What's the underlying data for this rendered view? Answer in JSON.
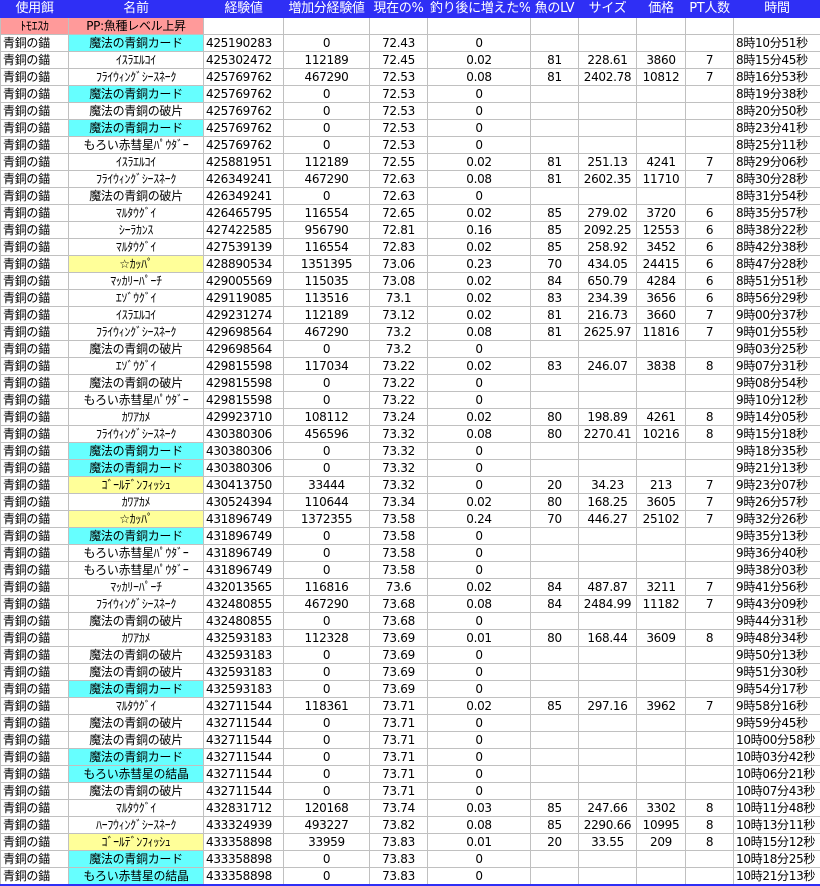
{
  "colors": {
    "header_bg": "#2f2ff5",
    "pp_bg": "#ff9a9a",
    "cyan": "#66ffff",
    "yellow": "#ffff99"
  },
  "headers": [
    "使用餌",
    "名前",
    "経験値",
    "増加分経験値",
    "現在の%",
    "釣り後に増えた%",
    "魚のLV",
    "サイズ",
    "価格",
    "PT人数",
    "時間"
  ],
  "pp_row": {
    "member": "ﾄﾓｴｽｶ",
    "buff": "PP:魚種レベル上昇"
  },
  "rows": [
    [
      "青銅の錨",
      "魔法の青銅カード",
      "425190283",
      "0",
      "72.43",
      "0",
      "",
      "",
      "",
      "",
      "8時10分51秒",
      "c"
    ],
    [
      "青銅の錨",
      "ｲｽﾗｴﾙｺｲ",
      "425302472",
      "112189",
      "72.45",
      "0.02",
      "81",
      "228.61",
      "3860",
      "7",
      "8時15分45秒",
      ""
    ],
    [
      "青銅の錨",
      "ﾌﾗｲｳｨﾝｸﾞｼｰｽﾈｰｸ",
      "425769762",
      "467290",
      "72.53",
      "0.08",
      "81",
      "2402.78",
      "10812",
      "7",
      "8時16分53秒",
      ""
    ],
    [
      "青銅の錨",
      "魔法の青銅カード",
      "425769762",
      "0",
      "72.53",
      "0",
      "",
      "",
      "",
      "",
      "8時19分38秒",
      "c"
    ],
    [
      "青銅の錨",
      "魔法の青銅の破片",
      "425769762",
      "0",
      "72.53",
      "0",
      "",
      "",
      "",
      "",
      "8時20分50秒",
      ""
    ],
    [
      "青銅の錨",
      "魔法の青銅カード",
      "425769762",
      "0",
      "72.53",
      "0",
      "",
      "",
      "",
      "",
      "8時23分41秒",
      "c"
    ],
    [
      "青銅の錨",
      "もろい赤彗星ﾊﾟｳﾀﾞｰ",
      "425769762",
      "0",
      "72.53",
      "0",
      "",
      "",
      "",
      "",
      "8時25分11秒",
      ""
    ],
    [
      "青銅の錨",
      "ｲｽﾗｴﾙｺｲ",
      "425881951",
      "112189",
      "72.55",
      "0.02",
      "81",
      "251.13",
      "4241",
      "7",
      "8時29分06秒",
      ""
    ],
    [
      "青銅の錨",
      "ﾌﾗｲｳｨﾝｸﾞｼｰｽﾈｰｸ",
      "426349241",
      "467290",
      "72.63",
      "0.08",
      "81",
      "2602.35",
      "11710",
      "7",
      "8時30分28秒",
      ""
    ],
    [
      "青銅の錨",
      "魔法の青銅の破片",
      "426349241",
      "0",
      "72.63",
      "0",
      "",
      "",
      "",
      "",
      "8時31分54秒",
      ""
    ],
    [
      "青銅の錨",
      "ﾏﾙﾀｳｸﾞｲ",
      "426465795",
      "116554",
      "72.65",
      "0.02",
      "85",
      "279.02",
      "3720",
      "6",
      "8時35分57秒",
      ""
    ],
    [
      "青銅の錨",
      "ｼｰﾗｶﾝｽ",
      "427422585",
      "956790",
      "72.81",
      "0.16",
      "85",
      "2092.25",
      "12553",
      "6",
      "8時38分22秒",
      ""
    ],
    [
      "青銅の錨",
      "ﾏﾙﾀｳｸﾞｲ",
      "427539139",
      "116554",
      "72.83",
      "0.02",
      "85",
      "258.92",
      "3452",
      "6",
      "8時42分38秒",
      ""
    ],
    [
      "青銅の錨",
      "☆ｶｯﾊﾟ",
      "428890534",
      "1351395",
      "73.06",
      "0.23",
      "70",
      "434.05",
      "24415",
      "6",
      "8時47分28秒",
      "y"
    ],
    [
      "青銅の錨",
      "ﾏｯｶﾘｰﾊﾟｰﾁ",
      "429005569",
      "115035",
      "73.08",
      "0.02",
      "84",
      "650.79",
      "4284",
      "6",
      "8時51分51秒",
      ""
    ],
    [
      "青銅の錨",
      "ｴｿﾞｳｸﾞｲ",
      "429119085",
      "113516",
      "73.1",
      "0.02",
      "83",
      "234.39",
      "3656",
      "6",
      "8時56分29秒",
      ""
    ],
    [
      "青銅の錨",
      "ｲｽﾗｴﾙｺｲ",
      "429231274",
      "112189",
      "73.12",
      "0.02",
      "81",
      "216.73",
      "3660",
      "7",
      "9時00分37秒",
      ""
    ],
    [
      "青銅の錨",
      "ﾌﾗｲｳｨﾝｸﾞｼｰｽﾈｰｸ",
      "429698564",
      "467290",
      "73.2",
      "0.08",
      "81",
      "2625.97",
      "11816",
      "7",
      "9時01分55秒",
      ""
    ],
    [
      "青銅の錨",
      "魔法の青銅の破片",
      "429698564",
      "0",
      "73.2",
      "0",
      "",
      "",
      "",
      "",
      "9時03分25秒",
      ""
    ],
    [
      "青銅の錨",
      "ｴｿﾞｳｸﾞｲ",
      "429815598",
      "117034",
      "73.22",
      "0.02",
      "83",
      "246.07",
      "3838",
      "8",
      "9時07分31秒",
      ""
    ],
    [
      "青銅の錨",
      "魔法の青銅の破片",
      "429815598",
      "0",
      "73.22",
      "0",
      "",
      "",
      "",
      "",
      "9時08分54秒",
      ""
    ],
    [
      "青銅の錨",
      "もろい赤彗星ﾊﾟｳﾀﾞｰ",
      "429815598",
      "0",
      "73.22",
      "0",
      "",
      "",
      "",
      "",
      "9時10分12秒",
      ""
    ],
    [
      "青銅の錨",
      "ｶﾜｱｶﾒ",
      "429923710",
      "108112",
      "73.24",
      "0.02",
      "80",
      "198.89",
      "4261",
      "8",
      "9時14分05秒",
      ""
    ],
    [
      "青銅の錨",
      "ﾌﾗｲｳｨﾝｸﾞｼｰｽﾈｰｸ",
      "430380306",
      "456596",
      "73.32",
      "0.08",
      "80",
      "2270.41",
      "10216",
      "8",
      "9時15分18秒",
      ""
    ],
    [
      "青銅の錨",
      "魔法の青銅カード",
      "430380306",
      "0",
      "73.32",
      "0",
      "",
      "",
      "",
      "",
      "9時18分35秒",
      "c"
    ],
    [
      "青銅の錨",
      "魔法の青銅カード",
      "430380306",
      "0",
      "73.32",
      "0",
      "",
      "",
      "",
      "",
      "9時21分13秒",
      "c"
    ],
    [
      "青銅の錨",
      "ｺﾞｰﾙﾃﾞﾝﾌｨｯｼｭ",
      "430413750",
      "33444",
      "73.32",
      "0",
      "20",
      "34.23",
      "213",
      "7",
      "9時23分07秒",
      "y"
    ],
    [
      "青銅の錨",
      "ｶﾜｱｶﾒ",
      "430524394",
      "110644",
      "73.34",
      "0.02",
      "80",
      "168.25",
      "3605",
      "7",
      "9時26分57秒",
      ""
    ],
    [
      "青銅の錨",
      "☆ｶｯﾊﾟ",
      "431896749",
      "1372355",
      "73.58",
      "0.24",
      "70",
      "446.27",
      "25102",
      "7",
      "9時32分26秒",
      "y"
    ],
    [
      "青銅の錨",
      "魔法の青銅カード",
      "431896749",
      "0",
      "73.58",
      "0",
      "",
      "",
      "",
      "",
      "9時35分13秒",
      "c"
    ],
    [
      "青銅の錨",
      "もろい赤彗星ﾊﾟｳﾀﾞｰ",
      "431896749",
      "0",
      "73.58",
      "0",
      "",
      "",
      "",
      "",
      "9時36分40秒",
      ""
    ],
    [
      "青銅の錨",
      "もろい赤彗星ﾊﾟｳﾀﾞｰ",
      "431896749",
      "0",
      "73.58",
      "0",
      "",
      "",
      "",
      "",
      "9時38分03秒",
      ""
    ],
    [
      "青銅の錨",
      "ﾏｯｶﾘｰﾊﾟｰﾁ",
      "432013565",
      "116816",
      "73.6",
      "0.02",
      "84",
      "487.87",
      "3211",
      "7",
      "9時41分56秒",
      ""
    ],
    [
      "青銅の錨",
      "ﾌﾗｲｳｨﾝｸﾞｼｰｽﾈｰｸ",
      "432480855",
      "467290",
      "73.68",
      "0.08",
      "84",
      "2484.99",
      "11182",
      "7",
      "9時43分09秒",
      ""
    ],
    [
      "青銅の錨",
      "魔法の青銅の破片",
      "432480855",
      "0",
      "73.68",
      "0",
      "",
      "",
      "",
      "",
      "9時44分31秒",
      ""
    ],
    [
      "青銅の錨",
      "ｶﾜｱｶﾒ",
      "432593183",
      "112328",
      "73.69",
      "0.01",
      "80",
      "168.44",
      "3609",
      "8",
      "9時48分34秒",
      ""
    ],
    [
      "青銅の錨",
      "魔法の青銅の破片",
      "432593183",
      "0",
      "73.69",
      "0",
      "",
      "",
      "",
      "",
      "9時50分13秒",
      ""
    ],
    [
      "青銅の錨",
      "魔法の青銅の破片",
      "432593183",
      "0",
      "73.69",
      "0",
      "",
      "",
      "",
      "",
      "9時51分30秒",
      ""
    ],
    [
      "青銅の錨",
      "魔法の青銅カード",
      "432593183",
      "0",
      "73.69",
      "0",
      "",
      "",
      "",
      "",
      "9時54分17秒",
      "c"
    ],
    [
      "青銅の錨",
      "ﾏﾙﾀｳｸﾞｲ",
      "432711544",
      "118361",
      "73.71",
      "0.02",
      "85",
      "297.16",
      "3962",
      "7",
      "9時58分16秒",
      ""
    ],
    [
      "青銅の錨",
      "魔法の青銅の破片",
      "432711544",
      "0",
      "73.71",
      "0",
      "",
      "",
      "",
      "",
      "9時59分45秒",
      ""
    ],
    [
      "青銅の錨",
      "魔法の青銅の破片",
      "432711544",
      "0",
      "73.71",
      "0",
      "",
      "",
      "",
      "",
      "10時00分58秒",
      ""
    ],
    [
      "青銅の錨",
      "魔法の青銅カード",
      "432711544",
      "0",
      "73.71",
      "0",
      "",
      "",
      "",
      "",
      "10時03分42秒",
      "c"
    ],
    [
      "青銅の錨",
      "もろい赤彗星の結晶",
      "432711544",
      "0",
      "73.71",
      "0",
      "",
      "",
      "",
      "",
      "10時06分21秒",
      "c"
    ],
    [
      "青銅の錨",
      "魔法の青銅の破片",
      "432711544",
      "0",
      "73.71",
      "0",
      "",
      "",
      "",
      "",
      "10時07分43秒",
      ""
    ],
    [
      "青銅の錨",
      "ﾏﾙﾀｳｸﾞｲ",
      "432831712",
      "120168",
      "73.74",
      "0.03",
      "85",
      "247.66",
      "3302",
      "8",
      "10時11分48秒",
      ""
    ],
    [
      "青銅の錨",
      "ﾊｰﾌｳｨﾝｸﾞｼｰｽﾈｰｸ",
      "433324939",
      "493227",
      "73.82",
      "0.08",
      "85",
      "2290.66",
      "10995",
      "8",
      "10時13分11秒",
      ""
    ],
    [
      "青銅の錨",
      "ｺﾞｰﾙﾃﾞﾝﾌｨｯｼｭ",
      "433358898",
      "33959",
      "73.83",
      "0.01",
      "20",
      "33.55",
      "209",
      "8",
      "10時15分12秒",
      "y"
    ],
    [
      "青銅の錨",
      "魔法の青銅カード",
      "433358898",
      "0",
      "73.83",
      "0",
      "",
      "",
      "",
      "",
      "10時18分25秒",
      "c"
    ],
    [
      "青銅の錨",
      "もろい赤彗星の結晶",
      "433358898",
      "0",
      "73.83",
      "0",
      "",
      "",
      "",
      "",
      "10時21分13秒",
      "c"
    ]
  ]
}
